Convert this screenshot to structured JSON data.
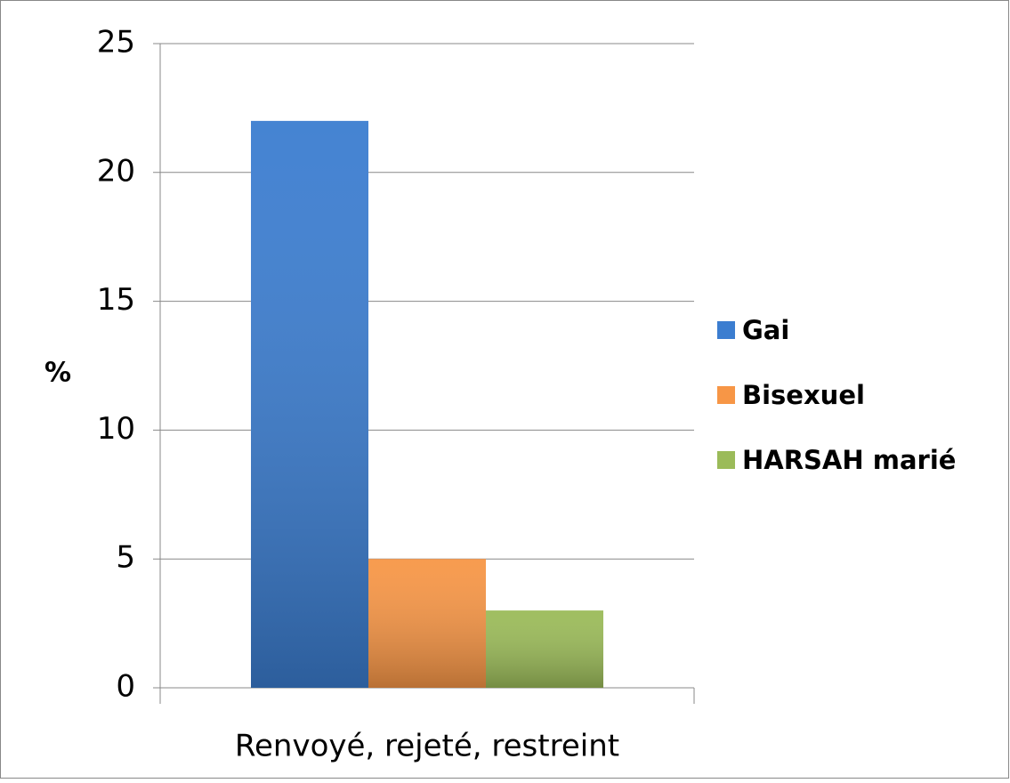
{
  "chart_data": {
    "type": "bar",
    "y_label": "%",
    "categories": [
      "Renvoyé, rejeté, restreint"
    ],
    "series": [
      {
        "name": "Gai",
        "color": "#3b7dd0",
        "values": [
          22
        ]
      },
      {
        "name": "Bisexuel",
        "color": "#f79646",
        "values": [
          5
        ]
      },
      {
        "name": "HARSAH marié",
        "color": "#9bbb59",
        "values": [
          3
        ]
      }
    ],
    "ylim": [
      0,
      25
    ],
    "yticks": [
      0,
      5,
      10,
      15,
      20,
      25
    ],
    "grid": true,
    "legend": "right"
  }
}
